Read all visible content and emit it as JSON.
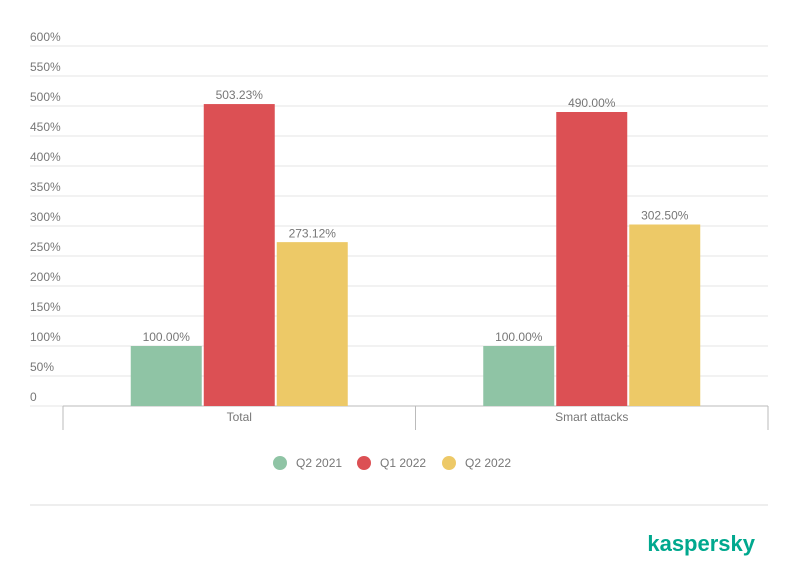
{
  "chart_data": {
    "type": "bar",
    "categories": [
      "Total",
      "Smart attacks"
    ],
    "series": [
      {
        "name": "Q2 2021",
        "color": "#8fc4a5",
        "values": [
          100,
          100
        ],
        "value_labels": [
          "100.00%",
          "100.00%"
        ]
      },
      {
        "name": "Q1 2022",
        "color": "#dc5054",
        "values": [
          503.23,
          490
        ],
        "value_labels": [
          "503.23%",
          "490.00%"
        ]
      },
      {
        "name": "Q2 2022",
        "color": "#edc967",
        "values": [
          273.12,
          302.5
        ],
        "value_labels": [
          "273.12%",
          "302.50%"
        ]
      }
    ],
    "ylim": [
      0,
      600
    ],
    "yticks": [
      0,
      {
        "value": 50,
        "label": "50%"
      },
      {
        "value": 100,
        "label": "100%"
      },
      {
        "value": 150,
        "label": "150%"
      },
      {
        "value": 200,
        "label": "200%"
      },
      {
        "value": 250,
        "label": "250%"
      },
      {
        "value": 300,
        "label": "300%"
      },
      {
        "value": 350,
        "label": "350%"
      },
      {
        "value": 400,
        "label": "400%"
      },
      {
        "value": 450,
        "label": "450%"
      },
      {
        "value": 500,
        "label": "500%"
      },
      {
        "value": 550,
        "label": "550%"
      },
      {
        "value": 600,
        "label": "600%"
      }
    ],
    "grid": true,
    "legend": "bottom"
  },
  "logo": "kaspersky"
}
